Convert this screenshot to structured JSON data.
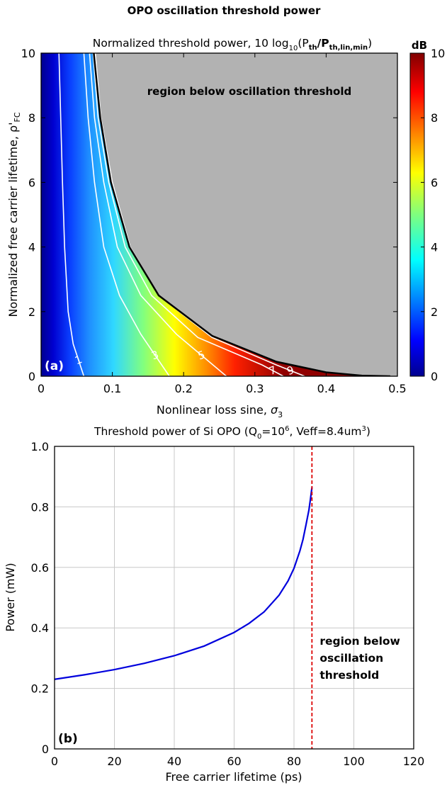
{
  "figure": {
    "title": "OPO oscillation threshold power"
  },
  "chart_data": [
    {
      "type": "heatmap",
      "panel_label": "(a)",
      "title_main": "Normalized threshold power, 10 log",
      "title_sub1": "10",
      "title_mid1": "(P",
      "title_sub2": "th",
      "title_mid2": "/P",
      "title_sub3": "th,lin,min",
      "title_end": ")",
      "xlabel_main": "Nonlinear loss sine, ",
      "xlabel_sym": "σ",
      "xlabel_sub": "3",
      "ylabel_main": "Normalized free carrier lifetime, ρ'",
      "ylabel_sub": "FC",
      "xlim": [
        0,
        0.5
      ],
      "ylim": [
        0,
        10
      ],
      "xticks": [
        "0",
        "0.1",
        "0.2",
        "0.3",
        "0.4",
        "0.5"
      ],
      "yticks": [
        "0",
        "2",
        "4",
        "6",
        "8",
        "10"
      ],
      "colorbar": {
        "label": "dB",
        "range": [
          0,
          10
        ],
        "ticks": [
          "0",
          "2",
          "4",
          "6",
          "8",
          "10"
        ],
        "colormap": "jet"
      },
      "contours": [
        {
          "level": 1,
          "label": "1",
          "points": [
            [
              0.025,
              10
            ],
            [
              0.03,
              6
            ],
            [
              0.033,
              4
            ],
            [
              0.038,
              2
            ],
            [
              0.045,
              1
            ],
            [
              0.06,
              0
            ]
          ]
        },
        {
          "level": 3,
          "label": "3",
          "points": [
            [
              0.06,
              10
            ],
            [
              0.066,
              8
            ],
            [
              0.075,
              6
            ],
            [
              0.088,
              4
            ],
            [
              0.11,
              2.5
            ],
            [
              0.14,
              1.3
            ],
            [
              0.18,
              0
            ]
          ]
        },
        {
          "level": 5,
          "label": "5",
          "points": [
            [
              0.068,
              10
            ],
            [
              0.075,
              8
            ],
            [
              0.088,
              6
            ],
            [
              0.107,
              4
            ],
            [
              0.14,
              2.5
            ],
            [
              0.19,
              1.3
            ],
            [
              0.26,
              0
            ]
          ]
        },
        {
          "level": 7,
          "label": "7",
          "points": [
            [
              0.073,
              10
            ],
            [
              0.08,
              8
            ],
            [
              0.095,
              6
            ],
            [
              0.118,
              4
            ],
            [
              0.155,
              2.5
            ],
            [
              0.22,
              1.2
            ],
            [
              0.31,
              0.35
            ],
            [
              0.34,
              0
            ]
          ]
        },
        {
          "level": 9,
          "label": "9",
          "points": [
            [
              0.076,
              10
            ],
            [
              0.084,
              8
            ],
            [
              0.1,
              6
            ],
            [
              0.125,
              4
            ],
            [
              0.165,
              2.5
            ],
            [
              0.24,
              1.2
            ],
            [
              0.33,
              0.35
            ],
            [
              0.37,
              0
            ]
          ]
        }
      ],
      "boundary": [
        [
          0.074,
          10
        ],
        [
          0.083,
          8
        ],
        [
          0.098,
          6
        ],
        [
          0.124,
          4
        ],
        [
          0.165,
          2.5
        ],
        [
          0.24,
          1.25
        ],
        [
          0.33,
          0.45
        ],
        [
          0.4,
          0.12
        ],
        [
          0.45,
          0.02
        ],
        [
          0.49,
          0
        ]
      ],
      "annotation": "region below oscillation threshold",
      "region_color": "#b2b2b2"
    },
    {
      "type": "line",
      "panel_label": "(b)",
      "title_main": "Threshold power of Si OPO (Q",
      "title_q_sub": "0",
      "title_eq": "=10",
      "title_exp": "6",
      "title_veff": ", Veff=8.4um",
      "title_cube": "3",
      "title_end": ")",
      "xlabel": "Free carrier lifetime (ps)",
      "ylabel": "Power (mW)",
      "xlim": [
        0,
        120
      ],
      "ylim": [
        0,
        1.0
      ],
      "xticks": [
        "0",
        "20",
        "40",
        "60",
        "80",
        "100",
        "120"
      ],
      "yticks": [
        "0",
        "0.2",
        "0.4",
        "0.6",
        "0.8",
        "1.0"
      ],
      "grid": true,
      "series": [
        {
          "color": "#0000dd",
          "x": [
            0,
            10,
            20,
            30,
            40,
            50,
            60,
            65,
            70,
            75,
            78,
            80,
            82,
            83,
            84,
            85,
            85.5,
            86
          ],
          "y": [
            0.23,
            0.245,
            0.262,
            0.283,
            0.308,
            0.34,
            0.385,
            0.415,
            0.453,
            0.508,
            0.555,
            0.597,
            0.655,
            0.692,
            0.74,
            0.79,
            0.825,
            0.865
          ]
        }
      ],
      "threshold_line": {
        "x": 86,
        "color": "#dd0000"
      },
      "annotation_lines": [
        "region below",
        "oscillation",
        "threshold"
      ]
    }
  ]
}
